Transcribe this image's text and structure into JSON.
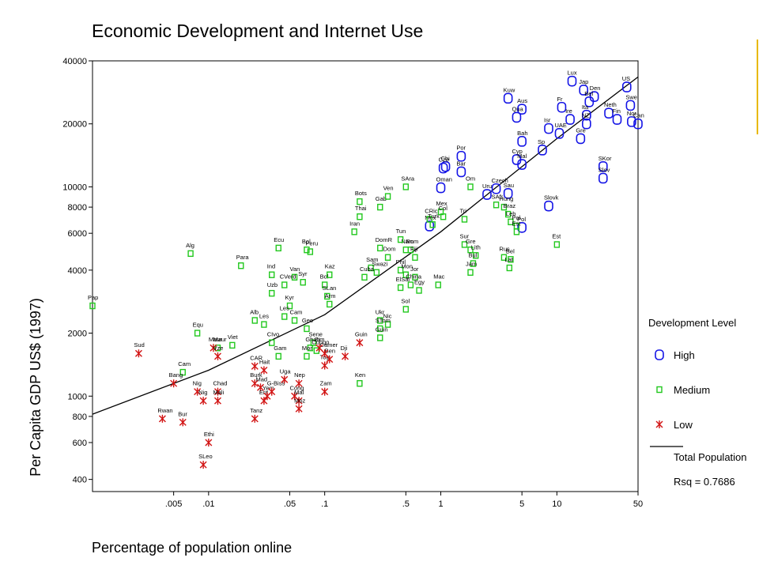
{
  "chart_data": {
    "type": "scatter",
    "title": "Economic Development and Internet Use",
    "xlabel": "Percentage of population online",
    "ylabel": "Per Capita GDP US$   (1997)",
    "xscale": "log",
    "yscale": "log",
    "xlim": [
      0.001,
      50
    ],
    "ylim": [
      350,
      40000
    ],
    "xticks": [
      {
        "v": 0.005,
        "label": ".005"
      },
      {
        "v": 0.01,
        "label": ".01"
      },
      {
        "v": 0.05,
        "label": ".05"
      },
      {
        "v": 0.1,
        "label": ".1"
      },
      {
        "v": 0.5,
        "label": ".5"
      },
      {
        "v": 1,
        "label": "1"
      },
      {
        "v": 5,
        "label": "5"
      },
      {
        "v": 10,
        "label": "10"
      },
      {
        "v": 50,
        "label": "50"
      }
    ],
    "yticks": [
      {
        "v": 400,
        "label": "400"
      },
      {
        "v": 600,
        "label": "600"
      },
      {
        "v": 800,
        "label": "800"
      },
      {
        "v": 1000,
        "label": "1000"
      },
      {
        "v": 2000,
        "label": "2000"
      },
      {
        "v": 4000,
        "label": "4000"
      },
      {
        "v": 6000,
        "label": "6000"
      },
      {
        "v": 8000,
        "label": "8000"
      },
      {
        "v": 10000,
        "label": "10000"
      },
      {
        "v": 20000,
        "label": "20000"
      },
      {
        "v": 40000,
        "label": "40000"
      }
    ],
    "legend": {
      "title": "Development Level",
      "position": "right",
      "items": [
        {
          "label": "High",
          "marker": "circle"
        },
        {
          "label": "Medium",
          "marker": "square"
        },
        {
          "label": "Low",
          "marker": "star"
        },
        {
          "label": "Total Population",
          "marker": "line"
        },
        {
          "label": "Rsq = 0.7686",
          "marker": "none"
        }
      ]
    },
    "fit_line": [
      [
        0.001,
        820
      ],
      [
        0.01,
        1330
      ],
      [
        0.1,
        2450
      ],
      [
        1,
        6100
      ],
      [
        10,
        17000
      ],
      [
        50,
        33500
      ]
    ],
    "series": [
      {
        "name": "High",
        "color": "#1414e6",
        "points": [
          {
            "x": 13.5,
            "y": 32000,
            "label": "Lux"
          },
          {
            "x": 40,
            "y": 30000,
            "label": "US"
          },
          {
            "x": 3.8,
            "y": 26500,
            "label": "Kuw"
          },
          {
            "x": 17,
            "y": 29000,
            "label": "Jap"
          },
          {
            "x": 21,
            "y": 27000,
            "label": "Den"
          },
          {
            "x": 19,
            "y": 25500,
            "label": "Bel"
          },
          {
            "x": 5,
            "y": 23500,
            "label": "Aus"
          },
          {
            "x": 11,
            "y": 24000,
            "label": "Fr"
          },
          {
            "x": 4.5,
            "y": 21500,
            "label": "Qua"
          },
          {
            "x": 13,
            "y": 21000,
            "label": "Ire"
          },
          {
            "x": 18,
            "y": 22000,
            "label": "Ita"
          },
          {
            "x": 28,
            "y": 22500,
            "label": "Neth"
          },
          {
            "x": 33,
            "y": 21000,
            "label": "Fin"
          },
          {
            "x": 43,
            "y": 24500,
            "label": "Swe"
          },
          {
            "x": 10.5,
            "y": 18000,
            "label": "UAE"
          },
          {
            "x": 18,
            "y": 20000,
            "label": "NZ"
          },
          {
            "x": 8.5,
            "y": 19000,
            "label": "Isr"
          },
          {
            "x": 5,
            "y": 16500,
            "label": "Bah"
          },
          {
            "x": 7.5,
            "y": 15000,
            "label": "Sp"
          },
          {
            "x": 16,
            "y": 17000,
            "label": "Gre"
          },
          {
            "x": 4.5,
            "y": 13500,
            "label": "Cyp"
          },
          {
            "x": 5,
            "y": 12800,
            "label": "Mal"
          },
          {
            "x": 1.5,
            "y": 14000,
            "label": "Por"
          },
          {
            "x": 1.1,
            "y": 12500,
            "label": "Chi"
          },
          {
            "x": 1.05,
            "y": 12300,
            "label": "Cze"
          },
          {
            "x": 1.5,
            "y": 11800,
            "label": "Bar"
          },
          {
            "x": 25,
            "y": 12500,
            "label": "SKor"
          },
          {
            "x": 25,
            "y": 11000,
            "label": "Slov"
          },
          {
            "x": 3,
            "y": 9800,
            "label": "Czech"
          },
          {
            "x": 2.5,
            "y": 9200,
            "label": "Uru"
          },
          {
            "x": 1,
            "y": 9900,
            "label": "Oman"
          },
          {
            "x": 3.8,
            "y": 9300,
            "label": "Sau"
          },
          {
            "x": 8.5,
            "y": 8100,
            "label": "Slovk"
          },
          {
            "x": 0.8,
            "y": 6500,
            "label": "Mex"
          },
          {
            "x": 5,
            "y": 6400,
            "label": "Pol"
          },
          {
            "x": 44,
            "y": 20500,
            "label": "Nor"
          },
          {
            "x": 50,
            "y": 20000,
            "label": "Can"
          }
        ]
      },
      {
        "name": "Medium",
        "color": "#22c81e",
        "points": [
          {
            "x": 0.001,
            "y": 2700,
            "label": "Pap"
          },
          {
            "x": 0.007,
            "y": 4800,
            "label": "Alg"
          },
          {
            "x": 0.019,
            "y": 4200,
            "label": "Para"
          },
          {
            "x": 0.04,
            "y": 5100,
            "label": "Ecu"
          },
          {
            "x": 0.07,
            "y": 5000,
            "label": "Bel"
          },
          {
            "x": 0.075,
            "y": 4900,
            "label": "Peru"
          },
          {
            "x": 0.035,
            "y": 3800,
            "label": "Ind"
          },
          {
            "x": 0.055,
            "y": 3700,
            "label": "Van"
          },
          {
            "x": 0.065,
            "y": 3500,
            "label": "Syr"
          },
          {
            "x": 0.045,
            "y": 3400,
            "label": "CVerd"
          },
          {
            "x": 0.035,
            "y": 3100,
            "label": "Uzb"
          },
          {
            "x": 0.1,
            "y": 3400,
            "label": "Bol"
          },
          {
            "x": 0.11,
            "y": 3800,
            "label": "Kaz"
          },
          {
            "x": 0.105,
            "y": 3000,
            "label": "SLan"
          },
          {
            "x": 0.11,
            "y": 2750,
            "label": "Arm"
          },
          {
            "x": 0.05,
            "y": 2700,
            "label": "Kyr"
          },
          {
            "x": 0.025,
            "y": 2300,
            "label": "Alb"
          },
          {
            "x": 0.045,
            "y": 2400,
            "label": "Les"
          },
          {
            "x": 0.055,
            "y": 2300,
            "label": "Cam"
          },
          {
            "x": 0.03,
            "y": 2200,
            "label": "Les"
          },
          {
            "x": 0.07,
            "y": 2100,
            "label": "Geo"
          },
          {
            "x": 0.008,
            "y": 2000,
            "label": "Equ"
          },
          {
            "x": 0.012,
            "y": 1700,
            "label": "Maur"
          },
          {
            "x": 0.016,
            "y": 1750,
            "label": "Viet"
          },
          {
            "x": 0.035,
            "y": 1800,
            "label": "CIvo"
          },
          {
            "x": 0.04,
            "y": 1550,
            "label": "Gam"
          },
          {
            "x": 0.08,
            "y": 1800,
            "label": "Sene"
          },
          {
            "x": 0.075,
            "y": 1700,
            "label": "Ghan"
          },
          {
            "x": 0.07,
            "y": 1550,
            "label": "Mor"
          },
          {
            "x": 0.085,
            "y": 1650,
            "label": "Congo"
          },
          {
            "x": 0.006,
            "y": 1300,
            "label": "Cam"
          },
          {
            "x": 0.2,
            "y": 1150,
            "label": "Ken"
          },
          {
            "x": 0.2,
            "y": 8500,
            "label": "Bots"
          },
          {
            "x": 0.3,
            "y": 8000,
            "label": "Gab"
          },
          {
            "x": 0.35,
            "y": 9000,
            "label": "Ven"
          },
          {
            "x": 0.2,
            "y": 7200,
            "label": "Thai"
          },
          {
            "x": 0.18,
            "y": 6100,
            "label": "Iran"
          },
          {
            "x": 0.5,
            "y": 10000,
            "label": "SAra"
          },
          {
            "x": 0.3,
            "y": 5100,
            "label": "DomR"
          },
          {
            "x": 0.35,
            "y": 4600,
            "label": "Dom"
          },
          {
            "x": 0.5,
            "y": 5000,
            "label": "Nam"
          },
          {
            "x": 0.45,
            "y": 5600,
            "label": "Tun"
          },
          {
            "x": 0.55,
            "y": 5000,
            "label": "Rom"
          },
          {
            "x": 0.6,
            "y": 4600,
            "label": "Fiji"
          },
          {
            "x": 0.25,
            "y": 4100,
            "label": "Sam"
          },
          {
            "x": 0.28,
            "y": 3900,
            "label": "Swazi"
          },
          {
            "x": 0.22,
            "y": 3700,
            "label": "Cuba"
          },
          {
            "x": 0.45,
            "y": 4000,
            "label": "Phil"
          },
          {
            "x": 0.5,
            "y": 3800,
            "label": "Mon"
          },
          {
            "x": 0.6,
            "y": 3700,
            "label": "Jor"
          },
          {
            "x": 0.55,
            "y": 3400,
            "label": "China"
          },
          {
            "x": 0.45,
            "y": 3300,
            "label": "ElSal"
          },
          {
            "x": 0.65,
            "y": 3200,
            "label": "Egy"
          },
          {
            "x": 0.95,
            "y": 3400,
            "label": "Mac"
          },
          {
            "x": 0.5,
            "y": 2600,
            "label": "Sol"
          },
          {
            "x": 0.3,
            "y": 2300,
            "label": "Ukr"
          },
          {
            "x": 0.35,
            "y": 2200,
            "label": "Nic"
          },
          {
            "x": 0.3,
            "y": 2100,
            "label": "STom"
          },
          {
            "x": 0.3,
            "y": 1900,
            "label": "Guin"
          },
          {
            "x": 0.8,
            "y": 7000,
            "label": "CRic"
          },
          {
            "x": 0.85,
            "y": 6600,
            "label": "Turk"
          },
          {
            "x": 1,
            "y": 7600,
            "label": "Mex"
          },
          {
            "x": 1.05,
            "y": 7200,
            "label": "Col"
          },
          {
            "x": 1.6,
            "y": 7000,
            "label": "Tri"
          },
          {
            "x": 1.8,
            "y": 10000,
            "label": "Om"
          },
          {
            "x": 1.6,
            "y": 5300,
            "label": "Sur"
          },
          {
            "x": 1.8,
            "y": 5000,
            "label": "Gre"
          },
          {
            "x": 2,
            "y": 4700,
            "label": "Lith"
          },
          {
            "x": 1.9,
            "y": 4300,
            "label": "Bul"
          },
          {
            "x": 1.8,
            "y": 3900,
            "label": "Jam"
          },
          {
            "x": 3.5,
            "y": 4600,
            "label": "Rus"
          },
          {
            "x": 4,
            "y": 4500,
            "label": "Bel"
          },
          {
            "x": 3.9,
            "y": 4100,
            "label": "Lat"
          },
          {
            "x": 3,
            "y": 8200,
            "label": "SAfr"
          },
          {
            "x": 3.5,
            "y": 8000,
            "label": "Hung"
          },
          {
            "x": 3.8,
            "y": 7400,
            "label": "Braz"
          },
          {
            "x": 4,
            "y": 6800,
            "label": "Leb"
          },
          {
            "x": 4.5,
            "y": 6500,
            "label": "Pol"
          },
          {
            "x": 4.5,
            "y": 6100,
            "label": "Est"
          },
          {
            "x": 10,
            "y": 5300,
            "label": "Est"
          }
        ]
      },
      {
        "name": "Low",
        "color": "#d21414",
        "points": [
          {
            "x": 0.0025,
            "y": 1600,
            "label": "Sud"
          },
          {
            "x": 0.011,
            "y": 1700,
            "label": "Maur"
          },
          {
            "x": 0.012,
            "y": 1550,
            "label": "Vze"
          },
          {
            "x": 0.025,
            "y": 1390,
            "label": "CAR"
          },
          {
            "x": 0.03,
            "y": 1330,
            "label": "Hait"
          },
          {
            "x": 0.005,
            "y": 1150,
            "label": "Bang"
          },
          {
            "x": 0.008,
            "y": 1050,
            "label": "Nig"
          },
          {
            "x": 0.009,
            "y": 950,
            "label": "Nig"
          },
          {
            "x": 0.012,
            "y": 1050,
            "label": "Chad"
          },
          {
            "x": 0.025,
            "y": 1150,
            "label": "Burk"
          },
          {
            "x": 0.028,
            "y": 1100,
            "label": "Mad"
          },
          {
            "x": 0.03,
            "y": 950,
            "label": "Erit"
          },
          {
            "x": 0.032,
            "y": 1000,
            "label": "Yem"
          },
          {
            "x": 0.035,
            "y": 1050,
            "label": "G-Biss"
          },
          {
            "x": 0.045,
            "y": 1200,
            "label": "Uga"
          },
          {
            "x": 0.06,
            "y": 1150,
            "label": "Nep"
          },
          {
            "x": 0.055,
            "y": 1000,
            "label": "Cong"
          },
          {
            "x": 0.06,
            "y": 950,
            "label": "Mal"
          },
          {
            "x": 0.06,
            "y": 870,
            "label": "Moz"
          },
          {
            "x": 0.012,
            "y": 950,
            "label": "Mali"
          },
          {
            "x": 0.004,
            "y": 780,
            "label": "Rwan"
          },
          {
            "x": 0.006,
            "y": 750,
            "label": "Bur"
          },
          {
            "x": 0.025,
            "y": 780,
            "label": "Tanz"
          },
          {
            "x": 0.01,
            "y": 600,
            "label": "Ethi"
          },
          {
            "x": 0.009,
            "y": 470,
            "label": "SLeo"
          },
          {
            "x": 0.1,
            "y": 1400,
            "label": "Tog"
          },
          {
            "x": 0.11,
            "y": 1500,
            "label": "Ben"
          },
          {
            "x": 0.15,
            "y": 1550,
            "label": "Dji"
          },
          {
            "x": 0.1,
            "y": 1050,
            "label": "Zam"
          },
          {
            "x": 0.1,
            "y": 1600,
            "label": "Camer"
          },
          {
            "x": 0.09,
            "y": 1700,
            "label": "Zim"
          },
          {
            "x": 0.2,
            "y": 1800,
            "label": "Guin"
          }
        ]
      }
    ]
  }
}
